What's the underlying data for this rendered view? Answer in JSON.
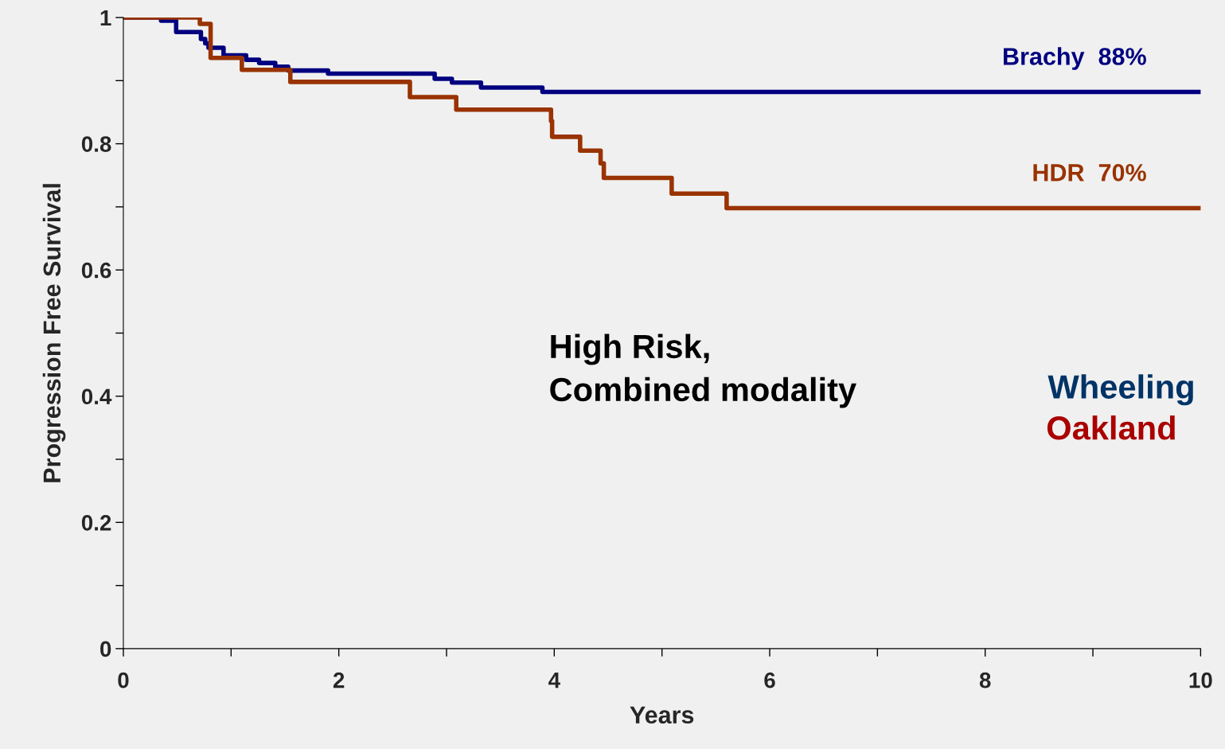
{
  "chart_data": {
    "type": "step",
    "xlabel": "Years",
    "ylabel": "Progression Free Survival",
    "xlim": [
      0,
      10
    ],
    "ylim": [
      0,
      1
    ],
    "xticks": [
      0,
      {
        "value": 1,
        "label": null
      },
      2,
      {
        "value": 3,
        "label": null
      },
      4,
      {
        "value": 5,
        "label": null
      },
      6,
      {
        "value": 7,
        "label": null
      },
      8,
      {
        "value": 9,
        "label": null
      },
      10
    ],
    "yticks": [
      0,
      {
        "value": 0.1,
        "label": null
      },
      0.2,
      {
        "value": 0.3,
        "label": null
      },
      0.4,
      {
        "value": 0.5,
        "label": null
      },
      0.6,
      {
        "value": 0.7,
        "label": null
      },
      0.8,
      {
        "value": 0.9,
        "label": null
      },
      1
    ],
    "grid": false,
    "legend": false,
    "marker": "none",
    "line_style": "solid",
    "series": [
      {
        "name": "Brachy  88%",
        "color": "#000080",
        "x": [
          0,
          0.35,
          0.49,
          0.72,
          0.76,
          0.79,
          0.93,
          1.14,
          1.26,
          1.41,
          1.53,
          1.9,
          2.89,
          3.05,
          3.32,
          3.89,
          10
        ],
        "values": [
          1,
          0.995,
          0.977,
          0.966,
          0.959,
          0.952,
          0.94,
          0.933,
          0.928,
          0.922,
          0.916,
          0.911,
          0.903,
          0.897,
          0.889,
          0.882,
          0.882
        ]
      },
      {
        "name": "HDR  70%",
        "color": "#993300",
        "x": [
          0,
          0.71,
          0.81,
          1.1,
          1.55,
          2.66,
          3.09,
          3.97,
          3.98,
          4.24,
          4.43,
          4.46,
          5.09,
          5.6,
          10
        ],
        "values": [
          1,
          0.99,
          0.936,
          0.917,
          0.898,
          0.874,
          0.854,
          0.836,
          0.811,
          0.789,
          0.769,
          0.746,
          0.721,
          0.698,
          0.698
        ]
      }
    ],
    "annotations": [
      "High Risk,\nCombined modality",
      "Wheeling",
      "Oakland"
    ]
  }
}
